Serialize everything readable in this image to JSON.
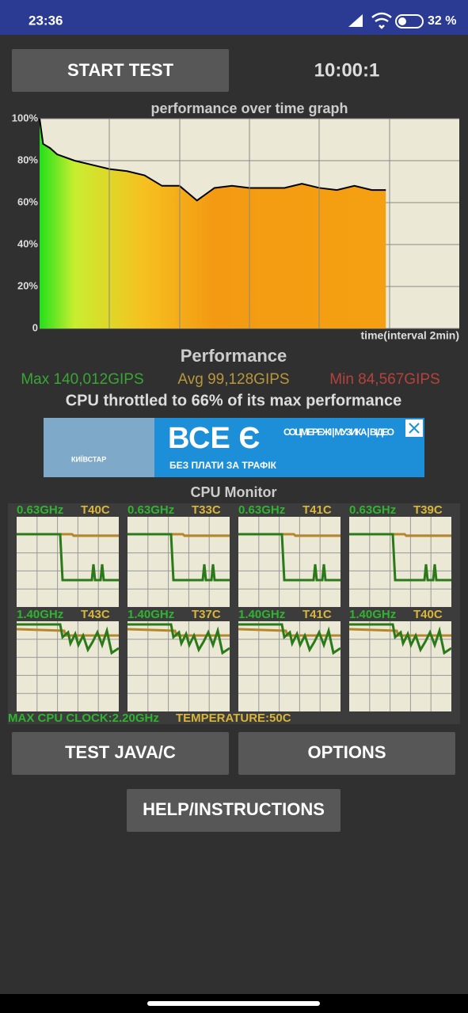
{
  "status_bar": {
    "time": "23:36",
    "battery": "32 %"
  },
  "controls": {
    "start_button": "START TEST",
    "timer": "10:00:1"
  },
  "chart_data": {
    "type": "line",
    "title": "performance over time graph",
    "x_label": "time(interval 2min)",
    "x": [
      0,
      0.1,
      0.3,
      0.5,
      1.0,
      1.5,
      2.0,
      2.5,
      3.0,
      3.5,
      4.0,
      4.5,
      5.0,
      5.5,
      6.0,
      6.5,
      7.0,
      7.5,
      8.0,
      8.5,
      9.0,
      9.5,
      9.9
    ],
    "values": [
      100,
      88,
      86,
      83,
      80,
      78,
      76,
      75,
      73,
      68,
      68,
      61,
      67,
      68,
      67,
      67,
      67,
      69,
      67,
      66,
      68,
      66,
      66
    ],
    "color": "#000000",
    "xlim": [
      0,
      12
    ],
    "ylim": [
      0,
      100
    ],
    "yticks": [
      0,
      {
        "value": 20,
        "label": "20%"
      },
      {
        "value": 40,
        "label": "40%"
      },
      {
        "value": 60,
        "label": "60%"
      },
      {
        "value": 80,
        "label": "80%"
      },
      {
        "value": 100,
        "label": "100%"
      }
    ],
    "grid": true
  },
  "performance": {
    "title": "Performance",
    "max": "Max 140,012GIPS",
    "avg": "Avg 99,128GIPS",
    "min": "Min 84,567GIPS",
    "throttle": "CPU throttled to 66% of its max performance"
  },
  "ad": {
    "brand": "КИЇВСТАР",
    "headline": "ВСЕ Є",
    "line1": "СОЦМЕРЕЖІ | МУЗИКА | ВІДЕО",
    "line2": "БЕЗ ПЛАТИ ЗА ТРАФІК"
  },
  "cpu_monitor": {
    "title": "CPU Monitor",
    "cores": [
      {
        "freq": "0.63GHz",
        "temp": "T40C"
      },
      {
        "freq": "0.63GHz",
        "temp": "T33C"
      },
      {
        "freq": "0.63GHz",
        "temp": "T41C"
      },
      {
        "freq": "0.63GHz",
        "temp": "T39C"
      },
      {
        "freq": "1.40GHz",
        "temp": "T43C"
      },
      {
        "freq": "1.40GHz",
        "temp": "T37C"
      },
      {
        "freq": "1.40GHz",
        "temp": "T41C"
      },
      {
        "freq": "1.40GHz",
        "temp": "T40C"
      }
    ],
    "max_clock": "MAX CPU CLOCK:2.20GHz",
    "temperature": "TEMPERATURE:50C"
  },
  "buttons": {
    "test": "TEST JAVA/C",
    "options": "OPTIONS",
    "help": "HELP/INSTRUCTIONS"
  }
}
